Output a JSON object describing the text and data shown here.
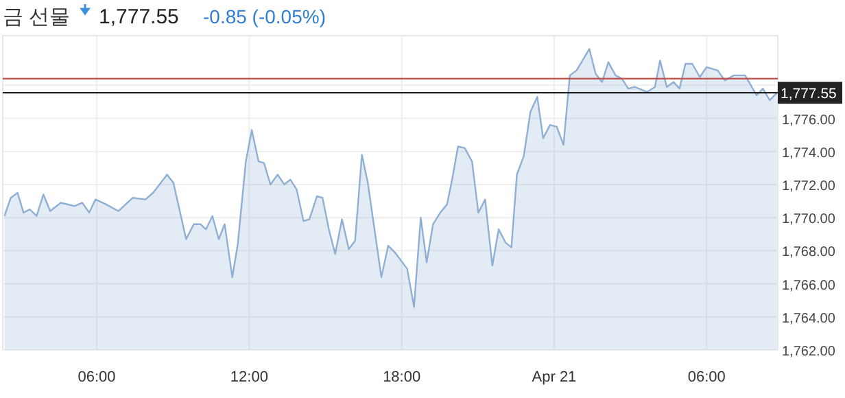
{
  "chart_data": {
    "type": "area",
    "title": "금 선물",
    "annotations": [
      "1,777.55",
      "-0.85 (-0.05%)"
    ],
    "xlim": [
      "--04-20T02:18",
      "--04-21T08:48"
    ],
    "xticks": [
      {
        "value": "--04-20T06:00",
        "label": "06:00"
      },
      {
        "value": "--04-20T12:00",
        "label": "12:00"
      },
      {
        "value": "--04-20T18:00",
        "label": "18:00"
      },
      {
        "value": "--04-21T00:00",
        "label": "Apr 21"
      },
      {
        "value": "--04-21T06:00",
        "label": "06:00"
      }
    ],
    "ylim": [
      1762,
      1781
    ],
    "yticks": [
      {
        "value": 1762,
        "label": "1,762.00"
      },
      {
        "value": 1764,
        "label": "1,764.00"
      },
      {
        "value": 1766,
        "label": "1,766.00"
      },
      {
        "value": 1768,
        "label": "1,768.00"
      },
      {
        "value": 1770,
        "label": "1,770.00"
      },
      {
        "value": 1772,
        "label": "1,772.00"
      },
      {
        "value": 1774,
        "label": "1,774.00"
      },
      {
        "value": 1776,
        "label": "1,776.00"
      },
      {
        "value": 1778,
        "label": null
      }
    ],
    "grid": true,
    "marker": "none",
    "line_style": "solid",
    "ref_lines": [
      {
        "axis": "y",
        "value": 1778.4,
        "label": null,
        "color": "#c0504d"
      },
      {
        "axis": "y",
        "value": 1777.55,
        "label": "1,777.55",
        "color": "#222222"
      }
    ],
    "series": [
      {
        "color": "#8fb0d4",
        "x": [
          "--04-20T02:22",
          "--04-20T02:37",
          "--04-20T02:53",
          "--04-20T03:07",
          "--04-20T03:22",
          "--04-20T03:38",
          "--04-20T03:54",
          "--04-20T04:10",
          "--04-20T04:35",
          "--04-20T05:07",
          "--04-20T05:26",
          "--04-20T05:42",
          "--04-20T05:57",
          "--04-20T06:22",
          "--04-20T06:51",
          "--04-20T07:25",
          "--04-20T07:55",
          "--04-20T08:13",
          "--04-20T08:46",
          "--04-20T09:01",
          "--04-20T09:31",
          "--04-20T09:49",
          "--04-20T10:05",
          "--04-20T10:18",
          "--04-20T10:33",
          "--04-20T10:48",
          "--04-20T11:02",
          "--04-20T11:20",
          "--04-20T11:33",
          "--04-20T11:52",
          "--04-20T12:06",
          "--04-20T12:22",
          "--04-20T12:35",
          "--04-20T12:50",
          "--04-20T13:07",
          "--04-20T13:23",
          "--04-20T13:37",
          "--04-20T13:52",
          "--04-20T14:08",
          "--04-20T14:22",
          "--04-20T14:40",
          "--04-20T14:53",
          "--04-20T15:08",
          "--04-20T15:23",
          "--04-20T15:39",
          "--04-20T15:55",
          "--04-20T16:10",
          "--04-20T16:26",
          "--04-20T16:40",
          "--04-20T17:12",
          "--04-20T17:28",
          "--04-20T17:44",
          "--04-20T18:13",
          "--04-20T18:29",
          "--04-20T18:45",
          "--04-20T18:59",
          "--04-20T19:14",
          "--04-20T19:31",
          "--04-20T19:47",
          "--04-20T19:59",
          "--04-20T20:13",
          "--04-20T20:29",
          "--04-20T20:46",
          "--04-20T21:01",
          "--04-20T21:17",
          "--04-20T21:34",
          "--04-20T21:49",
          "--04-20T22:05",
          "--04-20T22:19",
          "--04-20T22:32",
          "--04-20T22:48",
          "--04-20T23:04",
          "--04-20T23:20",
          "--04-20T23:34",
          "--04-20T23:50",
          "--04-21T00:06",
          "--04-21T00:22",
          "--04-21T00:37",
          "--04-21T00:53",
          "--04-21T01:23",
          "--04-21T01:38",
          "--04-21T01:53",
          "--04-21T02:08",
          "--04-21T02:25",
          "--04-21T02:40",
          "--04-21T02:55",
          "--04-21T03:10",
          "--04-21T03:39",
          "--04-21T03:58",
          "--04-21T04:10",
          "--04-21T04:26",
          "--04-21T04:42",
          "--04-21T04:56",
          "--04-21T05:10",
          "--04-21T05:26",
          "--04-21T05:44",
          "--04-21T06:00",
          "--04-21T06:26",
          "--04-21T06:43",
          "--04-21T07:04",
          "--04-21T07:31",
          "--04-21T07:58",
          "--04-21T08:13",
          "--04-21T08:29",
          "--04-21T08:46"
        ],
        "values": [
          1770.1,
          1771.2,
          1771.5,
          1770.3,
          1770.5,
          1770.1,
          1771.4,
          1770.4,
          1770.9,
          1770.7,
          1770.9,
          1770.3,
          1771.1,
          1770.8,
          1770.4,
          1771.2,
          1771.1,
          1771.5,
          1772.6,
          1772.1,
          1768.7,
          1769.6,
          1769.6,
          1769.3,
          1770.1,
          1768.7,
          1769.6,
          1766.4,
          1768.4,
          1773.4,
          1775.3,
          1773.4,
          1773.3,
          1772,
          1772.6,
          1772,
          1772.3,
          1771.7,
          1769.8,
          1769.9,
          1771.3,
          1771.2,
          1769.3,
          1767.8,
          1769.9,
          1768.1,
          1768.6,
          1773.8,
          1772.1,
          1766.4,
          1768.3,
          1767.9,
          1766.9,
          1764.6,
          1770,
          1767.3,
          1769.6,
          1770.3,
          1770.8,
          1772.3,
          1774.3,
          1774.2,
          1773.4,
          1770.3,
          1771.1,
          1767.1,
          1769.3,
          1768.5,
          1768.2,
          1772.6,
          1773.7,
          1776.4,
          1777.3,
          1774.8,
          1775.6,
          1775.5,
          1774.4,
          1778.6,
          1778.9,
          1780.2,
          1778.7,
          1778.2,
          1779.4,
          1778.6,
          1778.4,
          1777.8,
          1777.9,
          1777.6,
          1777.9,
          1779.5,
          1777.9,
          1778.2,
          1777.8,
          1779.3,
          1779.3,
          1778.5,
          1779.1,
          1778.9,
          1778.3,
          1778.6,
          1778.6,
          1777.4,
          1777.8,
          1777.1,
          1777.55
        ]
      }
    ]
  }
}
